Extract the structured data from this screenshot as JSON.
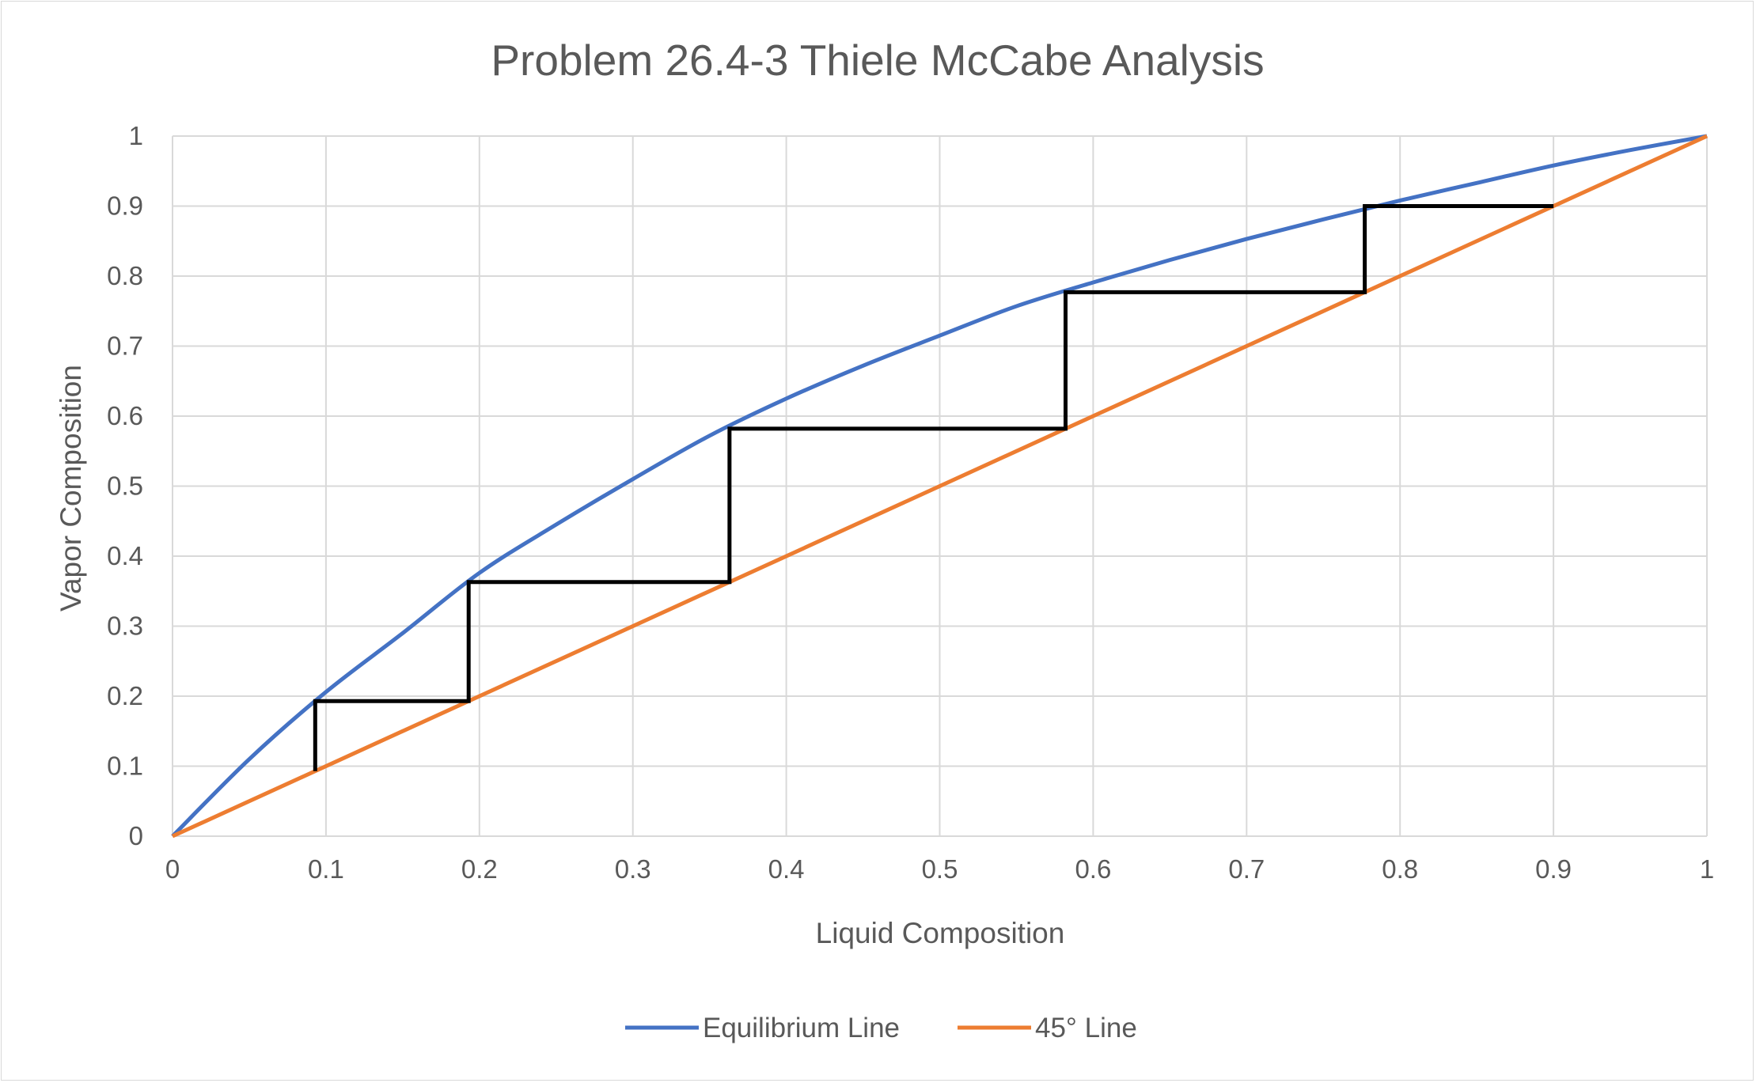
{
  "chart_data": {
    "type": "line",
    "title": "Problem 26.4-3 Thiele McCabe Analysis",
    "xlabel": "Liquid Composition",
    "ylabel": "Vapor Composition",
    "xlim": [
      0,
      1
    ],
    "ylim": [
      0,
      1
    ],
    "x_ticks": [
      "0",
      "0.1",
      "0.2",
      "0.3",
      "0.4",
      "0.5",
      "0.6",
      "0.7",
      "0.8",
      "0.9",
      "1"
    ],
    "y_ticks": [
      "0",
      "0.1",
      "0.2",
      "0.3",
      "0.4",
      "0.5",
      "0.6",
      "0.7",
      "0.8",
      "0.9",
      "1"
    ],
    "grid": true,
    "legend_position": "bottom",
    "series": [
      {
        "name": "Equilibrium Line",
        "color": "#4472c4",
        "x": [
          0,
          0.05,
          0.1,
          0.15,
          0.2,
          0.25,
          0.3,
          0.35,
          0.4,
          0.45,
          0.5,
          0.55,
          0.6,
          0.65,
          0.7,
          0.75,
          0.8,
          0.85,
          0.9,
          0.95,
          1
        ],
        "y": [
          0,
          0.11,
          0.206,
          0.29,
          0.376,
          0.445,
          0.51,
          0.572,
          0.625,
          0.672,
          0.715,
          0.757,
          0.791,
          0.823,
          0.853,
          0.881,
          0.908,
          0.933,
          0.958,
          0.98,
          1
        ]
      },
      {
        "name": "45° Line",
        "color": "#ed7d31",
        "x": [
          0,
          1
        ],
        "y": [
          0,
          1
        ]
      },
      {
        "name": "",
        "color": "#000000",
        "x": [
          0.9,
          0.777,
          0.777,
          0.582,
          0.582,
          0.363,
          0.363,
          0.193,
          0.193,
          0.093,
          0.093
        ],
        "y": [
          0.9,
          0.9,
          0.777,
          0.777,
          0.582,
          0.582,
          0.363,
          0.363,
          0.193,
          0.193,
          0.093
        ]
      }
    ]
  }
}
